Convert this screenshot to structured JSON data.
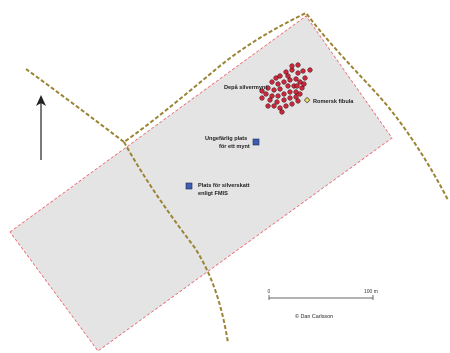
{
  "labels": {
    "hoard": "Depå silvermynt",
    "fibula": "Romersk fibula",
    "coin_place_line1": "Ungefärlig plats",
    "coin_place_line2": "för ett mynt",
    "fmis_line1": "Plats för silverskatt",
    "fmis_line2": "enligt FMIS",
    "credit": "© Dan Carlsson"
  },
  "scale_bar": {
    "start_label": "0",
    "end_label": "100 m"
  },
  "colors": {
    "field_fill": "#e4e4e4",
    "field_border": "#e8606a",
    "road": "#9a8434",
    "coin_fill": "#c8283c",
    "coin_stroke": "#3a0a10",
    "square_fill": "#3f5eae",
    "fibula_fill": "#f2e25a",
    "arrow": "#222222"
  },
  "icons": {
    "north_arrow": "north-arrow-icon",
    "coin": "coin-marker-icon",
    "square": "square-marker-icon",
    "fibula": "diamond-marker-icon"
  }
}
